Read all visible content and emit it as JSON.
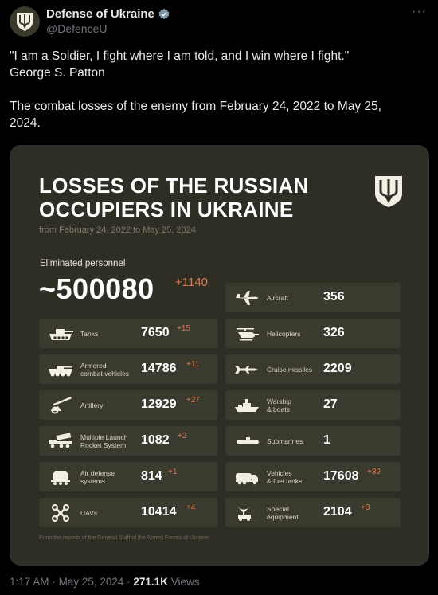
{
  "account": {
    "name": "Defense of Ukraine",
    "handle": "@DefenceU",
    "more_label": "···"
  },
  "tweet": {
    "line1": "\"I am a Soldier, I fight where I am told, and I win where I fight.\"",
    "line2": "George S. Patton",
    "line3": "The combat losses of the enemy from February 24, 2022 to May 25,",
    "line4": "2024."
  },
  "card": {
    "title_line1": "LOSSES OF THE RUSSIAN",
    "title_line2": "OCCUPIERS IN UKRAINE",
    "subtitle": "from February 24, 2022 to May 25, 2024",
    "personnel_label": "Eliminated personnel",
    "personnel_value": "~500080",
    "personnel_delta": "+1140",
    "footer": "From the reports of the General Staff of the Armed Forces of Ukraine",
    "left": [
      {
        "icon": "tank-icon",
        "label1": "Tanks",
        "label2": "",
        "value": "7650",
        "delta": "+15"
      },
      {
        "icon": "armored-vehicle-icon",
        "label1": "Armored",
        "label2": "combat vehicles",
        "value": "14786",
        "delta": "+11"
      },
      {
        "icon": "artillery-icon",
        "label1": "Artillery",
        "label2": "",
        "value": "12929",
        "delta": "+27"
      },
      {
        "icon": "rocket-launcher-icon",
        "label1": "Multiple Launch",
        "label2": "Rocket System",
        "value": "1082",
        "delta": "+2"
      },
      {
        "icon": "air-defense-icon",
        "label1": "Air defense",
        "label2": "systems",
        "value": "814",
        "delta": "+1"
      },
      {
        "icon": "drone-icon",
        "label1": "UAVs",
        "label2": "",
        "value": "10414",
        "delta": "+4"
      }
    ],
    "right": [
      {
        "icon": "aircraft-icon",
        "label1": "Aircraft",
        "label2": "",
        "value": "356",
        "delta": ""
      },
      {
        "icon": "helicopter-icon",
        "label1": "Helicopters",
        "label2": "",
        "value": "326",
        "delta": ""
      },
      {
        "icon": "cruise-missile-icon",
        "label1": "Cruise missiles",
        "label2": "",
        "value": "2209",
        "delta": ""
      },
      {
        "icon": "warship-icon",
        "label1": "Warship",
        "label2": "& boats",
        "value": "27",
        "delta": ""
      },
      {
        "icon": "submarine-icon",
        "label1": "Submarines",
        "label2": "",
        "value": "1",
        "delta": ""
      },
      {
        "icon": "fuel-truck-icon",
        "label1": "Vehicles",
        "label2": "& fuel tanks",
        "value": "17608",
        "delta": "+39"
      },
      {
        "icon": "special-equipment-icon",
        "label1": "Special",
        "label2": "equipment",
        "value": "2104",
        "delta": "+3"
      }
    ]
  },
  "meta": {
    "time": "1:17 AM",
    "sep": "·",
    "date": "May 25, 2024",
    "views_count": "271.1K",
    "views_label": "Views"
  }
}
